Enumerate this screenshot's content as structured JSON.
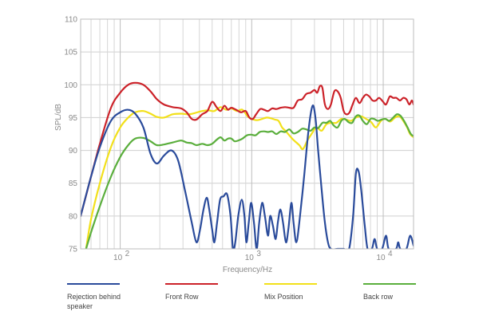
{
  "chart_data": {
    "type": "line",
    "title": "",
    "xlabel": "Frequency/Hz",
    "ylabel": "SPL/dB",
    "xscale": "log",
    "xlim": [
      50,
      17000
    ],
    "ylim": [
      75,
      110
    ],
    "yticks": [
      75,
      80,
      85,
      90,
      95,
      100,
      105,
      110
    ],
    "xticks": [
      {
        "value": 100,
        "base": "10",
        "exp": "2"
      },
      {
        "value": 1000,
        "base": "10",
        "exp": "3"
      },
      {
        "value": 10000,
        "base": "10",
        "exp": "4"
      }
    ],
    "grid": true,
    "legend_position": "bottom",
    "series": [
      {
        "name": "Rejection behind speaker",
        "color": "#2a4b9b",
        "points": [
          [
            50,
            80
          ],
          [
            60,
            86
          ],
          [
            70,
            90.5
          ],
          [
            85,
            94.5
          ],
          [
            100,
            95.8
          ],
          [
            115,
            96.2
          ],
          [
            130,
            95.6
          ],
          [
            150,
            93.5
          ],
          [
            170,
            89.5
          ],
          [
            190,
            88
          ],
          [
            215,
            89.2
          ],
          [
            245,
            90
          ],
          [
            275,
            88.5
          ],
          [
            310,
            84
          ],
          [
            350,
            79
          ],
          [
            380,
            76
          ],
          [
            405,
            78
          ],
          [
            430,
            81
          ],
          [
            455,
            82.8
          ],
          [
            475,
            81
          ],
          [
            500,
            78
          ],
          [
            520,
            76
          ],
          [
            545,
            79
          ],
          [
            575,
            82.5
          ],
          [
            610,
            83
          ],
          [
            650,
            83.3
          ],
          [
            690,
            80
          ],
          [
            720,
            75
          ],
          [
            750,
            76
          ],
          [
            790,
            80
          ],
          [
            840,
            82.5
          ],
          [
            880,
            80
          ],
          [
            910,
            76
          ],
          [
            950,
            79
          ],
          [
            990,
            82
          ],
          [
            1040,
            79
          ],
          [
            1090,
            75
          ],
          [
            1140,
            79
          ],
          [
            1200,
            82
          ],
          [
            1260,
            80
          ],
          [
            1330,
            77
          ],
          [
            1380,
            80
          ],
          [
            1450,
            78.5
          ],
          [
            1520,
            76.5
          ],
          [
            1580,
            79
          ],
          [
            1650,
            81
          ],
          [
            1730,
            79
          ],
          [
            1820,
            76
          ],
          [
            1900,
            78
          ],
          [
            2000,
            82
          ],
          [
            2080,
            79
          ],
          [
            2180,
            76
          ],
          [
            2300,
            79
          ],
          [
            2500,
            86
          ],
          [
            2700,
            93
          ],
          [
            2900,
            96.8
          ],
          [
            3050,
            95
          ],
          [
            3200,
            90
          ],
          [
            3400,
            84
          ],
          [
            3600,
            79
          ],
          [
            3800,
            76
          ],
          [
            4000,
            75
          ],
          [
            4500,
            75
          ],
          [
            5000,
            75
          ],
          [
            5500,
            75
          ],
          [
            5900,
            80
          ],
          [
            6200,
            86.5
          ],
          [
            6500,
            86.8
          ],
          [
            6800,
            84
          ],
          [
            7200,
            79
          ],
          [
            7600,
            75
          ],
          [
            8200,
            75
          ],
          [
            8600,
            76.5
          ],
          [
            9000,
            75
          ],
          [
            9800,
            75
          ],
          [
            10500,
            77
          ],
          [
            11000,
            75
          ],
          [
            12500,
            75
          ],
          [
            13000,
            76
          ],
          [
            13500,
            75
          ],
          [
            15000,
            75
          ],
          [
            16000,
            77
          ],
          [
            17000,
            75.5
          ]
        ]
      },
      {
        "name": "Front Row",
        "color": "#cc2229",
        "points": [
          [
            50,
            80
          ],
          [
            60,
            86
          ],
          [
            70,
            91
          ],
          [
            85,
            96.5
          ],
          [
            100,
            98.8
          ],
          [
            115,
            100
          ],
          [
            130,
            100.3
          ],
          [
            150,
            100
          ],
          [
            170,
            99
          ],
          [
            190,
            97.8
          ],
          [
            215,
            97
          ],
          [
            250,
            96.6
          ],
          [
            290,
            96.4
          ],
          [
            320,
            95.8
          ],
          [
            350,
            94.8
          ],
          [
            380,
            94.7
          ],
          [
            420,
            95.5
          ],
          [
            460,
            96
          ],
          [
            500,
            97.4
          ],
          [
            540,
            96.6
          ],
          [
            580,
            96
          ],
          [
            620,
            96.8
          ],
          [
            660,
            96.2
          ],
          [
            700,
            96.5
          ],
          [
            760,
            96.2
          ],
          [
            830,
            95.8
          ],
          [
            900,
            96
          ],
          [
            960,
            95
          ],
          [
            1020,
            94.8
          ],
          [
            1080,
            95.5
          ],
          [
            1160,
            96.3
          ],
          [
            1240,
            96.2
          ],
          [
            1330,
            96
          ],
          [
            1430,
            96.4
          ],
          [
            1540,
            96.3
          ],
          [
            1660,
            96.5
          ],
          [
            1790,
            96.6
          ],
          [
            1930,
            96.5
          ],
          [
            2080,
            96.5
          ],
          [
            2240,
            97.6
          ],
          [
            2420,
            97.8
          ],
          [
            2600,
            98.6
          ],
          [
            2800,
            98.8
          ],
          [
            3000,
            99.2
          ],
          [
            3150,
            98.8
          ],
          [
            3300,
            99.8
          ],
          [
            3450,
            99.5
          ],
          [
            3600,
            97
          ],
          [
            3800,
            96.3
          ],
          [
            4000,
            97
          ],
          [
            4250,
            99
          ],
          [
            4500,
            99
          ],
          [
            4750,
            98
          ],
          [
            5000,
            96
          ],
          [
            5250,
            95.5
          ],
          [
            5550,
            95.8
          ],
          [
            5850,
            97
          ],
          [
            6200,
            98
          ],
          [
            6600,
            97.2
          ],
          [
            7000,
            98
          ],
          [
            7400,
            98.5
          ],
          [
            7850,
            98.2
          ],
          [
            8300,
            97.6
          ],
          [
            8800,
            97.6
          ],
          [
            9300,
            98
          ],
          [
            9900,
            97.5
          ],
          [
            10500,
            97
          ],
          [
            11200,
            98.2
          ],
          [
            11900,
            98
          ],
          [
            12600,
            98
          ],
          [
            13400,
            97.6
          ],
          [
            14200,
            98
          ],
          [
            15000,
            97.8
          ],
          [
            15800,
            97
          ],
          [
            16500,
            97.6
          ],
          [
            17000,
            97
          ]
        ]
      },
      {
        "name": "Mix Position",
        "color": "#f2e01a",
        "points": [
          [
            55,
            75
          ],
          [
            60,
            79.5
          ],
          [
            70,
            85
          ],
          [
            85,
            90.5
          ],
          [
            100,
            93.5
          ],
          [
            115,
            95
          ],
          [
            130,
            95.8
          ],
          [
            150,
            96
          ],
          [
            170,
            95.6
          ],
          [
            190,
            95.1
          ],
          [
            215,
            95
          ],
          [
            250,
            95.5
          ],
          [
            290,
            95.6
          ],
          [
            330,
            95.5
          ],
          [
            370,
            95.7
          ],
          [
            420,
            96
          ],
          [
            470,
            96.1
          ],
          [
            520,
            96
          ],
          [
            580,
            96.6
          ],
          [
            640,
            96.2
          ],
          [
            700,
            96.4
          ],
          [
            770,
            96
          ],
          [
            850,
            96.2
          ],
          [
            930,
            95.2
          ],
          [
            1000,
            94.8
          ],
          [
            1100,
            94.6
          ],
          [
            1200,
            94.8
          ],
          [
            1300,
            95
          ],
          [
            1400,
            94.9
          ],
          [
            1500,
            94.7
          ],
          [
            1600,
            94.5
          ],
          [
            1700,
            93.5
          ],
          [
            1800,
            93
          ],
          [
            1950,
            92.2
          ],
          [
            2100,
            91.5
          ],
          [
            2300,
            90.8
          ],
          [
            2450,
            90.2
          ],
          [
            2650,
            91.5
          ],
          [
            2850,
            92.5
          ],
          [
            3100,
            93.5
          ],
          [
            3400,
            93
          ],
          [
            3700,
            94
          ],
          [
            4050,
            94.2
          ],
          [
            4400,
            94.2
          ],
          [
            4800,
            94.8
          ],
          [
            5200,
            94.7
          ],
          [
            5700,
            94.5
          ],
          [
            6200,
            95
          ],
          [
            6800,
            95.2
          ],
          [
            7400,
            94.8
          ],
          [
            8100,
            94.3
          ],
          [
            8800,
            93.5
          ],
          [
            9600,
            94.5
          ],
          [
            10400,
            94.8
          ],
          [
            11300,
            94.4
          ],
          [
            12300,
            95
          ],
          [
            13300,
            95.2
          ],
          [
            14200,
            94.5
          ],
          [
            15200,
            93.5
          ],
          [
            16000,
            92.5
          ],
          [
            17000,
            92
          ]
        ]
      },
      {
        "name": "Back row",
        "color": "#5aae3c",
        "points": [
          [
            55,
            75
          ],
          [
            60,
            77.5
          ],
          [
            70,
            81.5
          ],
          [
            85,
            86
          ],
          [
            100,
            89
          ],
          [
            115,
            90.8
          ],
          [
            130,
            91.8
          ],
          [
            150,
            91.9
          ],
          [
            170,
            91.4
          ],
          [
            190,
            90.8
          ],
          [
            215,
            90.9
          ],
          [
            250,
            91.2
          ],
          [
            290,
            91.5
          ],
          [
            320,
            91.2
          ],
          [
            350,
            91.1
          ],
          [
            380,
            90.8
          ],
          [
            420,
            91
          ],
          [
            460,
            90.8
          ],
          [
            500,
            91
          ],
          [
            540,
            91.6
          ],
          [
            580,
            92
          ],
          [
            620,
            91.5
          ],
          [
            660,
            91.8
          ],
          [
            700,
            91.8
          ],
          [
            740,
            91.4
          ],
          [
            790,
            91.5
          ],
          [
            850,
            91.8
          ],
          [
            920,
            92.3
          ],
          [
            990,
            92.4
          ],
          [
            1070,
            92.3
          ],
          [
            1150,
            92.8
          ],
          [
            1240,
            92.9
          ],
          [
            1330,
            92.8
          ],
          [
            1430,
            92.9
          ],
          [
            1540,
            92.5
          ],
          [
            1660,
            92.9
          ],
          [
            1790,
            92.8
          ],
          [
            1930,
            93.2
          ],
          [
            2080,
            92.6
          ],
          [
            2240,
            92.8
          ],
          [
            2420,
            93.3
          ],
          [
            2600,
            93.2
          ],
          [
            2800,
            93
          ],
          [
            3000,
            93.5
          ],
          [
            3200,
            93.4
          ],
          [
            3450,
            94.2
          ],
          [
            3700,
            94.2
          ],
          [
            3950,
            94.5
          ],
          [
            4200,
            93.8
          ],
          [
            4500,
            93.5
          ],
          [
            4800,
            94.5
          ],
          [
            5100,
            94.8
          ],
          [
            5450,
            94.3
          ],
          [
            5800,
            94.2
          ],
          [
            6200,
            95.2
          ],
          [
            6600,
            95.3
          ],
          [
            7000,
            94.5
          ],
          [
            7500,
            94
          ],
          [
            8000,
            94.8
          ],
          [
            8500,
            94.8
          ],
          [
            9100,
            94.5
          ],
          [
            9700,
            94.7
          ],
          [
            10400,
            94.8
          ],
          [
            11100,
            94.5
          ],
          [
            11900,
            95
          ],
          [
            12700,
            95.5
          ],
          [
            13500,
            95.3
          ],
          [
            14400,
            94.5
          ],
          [
            15300,
            93.5
          ],
          [
            16200,
            92.5
          ],
          [
            17000,
            92.2
          ]
        ]
      }
    ]
  }
}
